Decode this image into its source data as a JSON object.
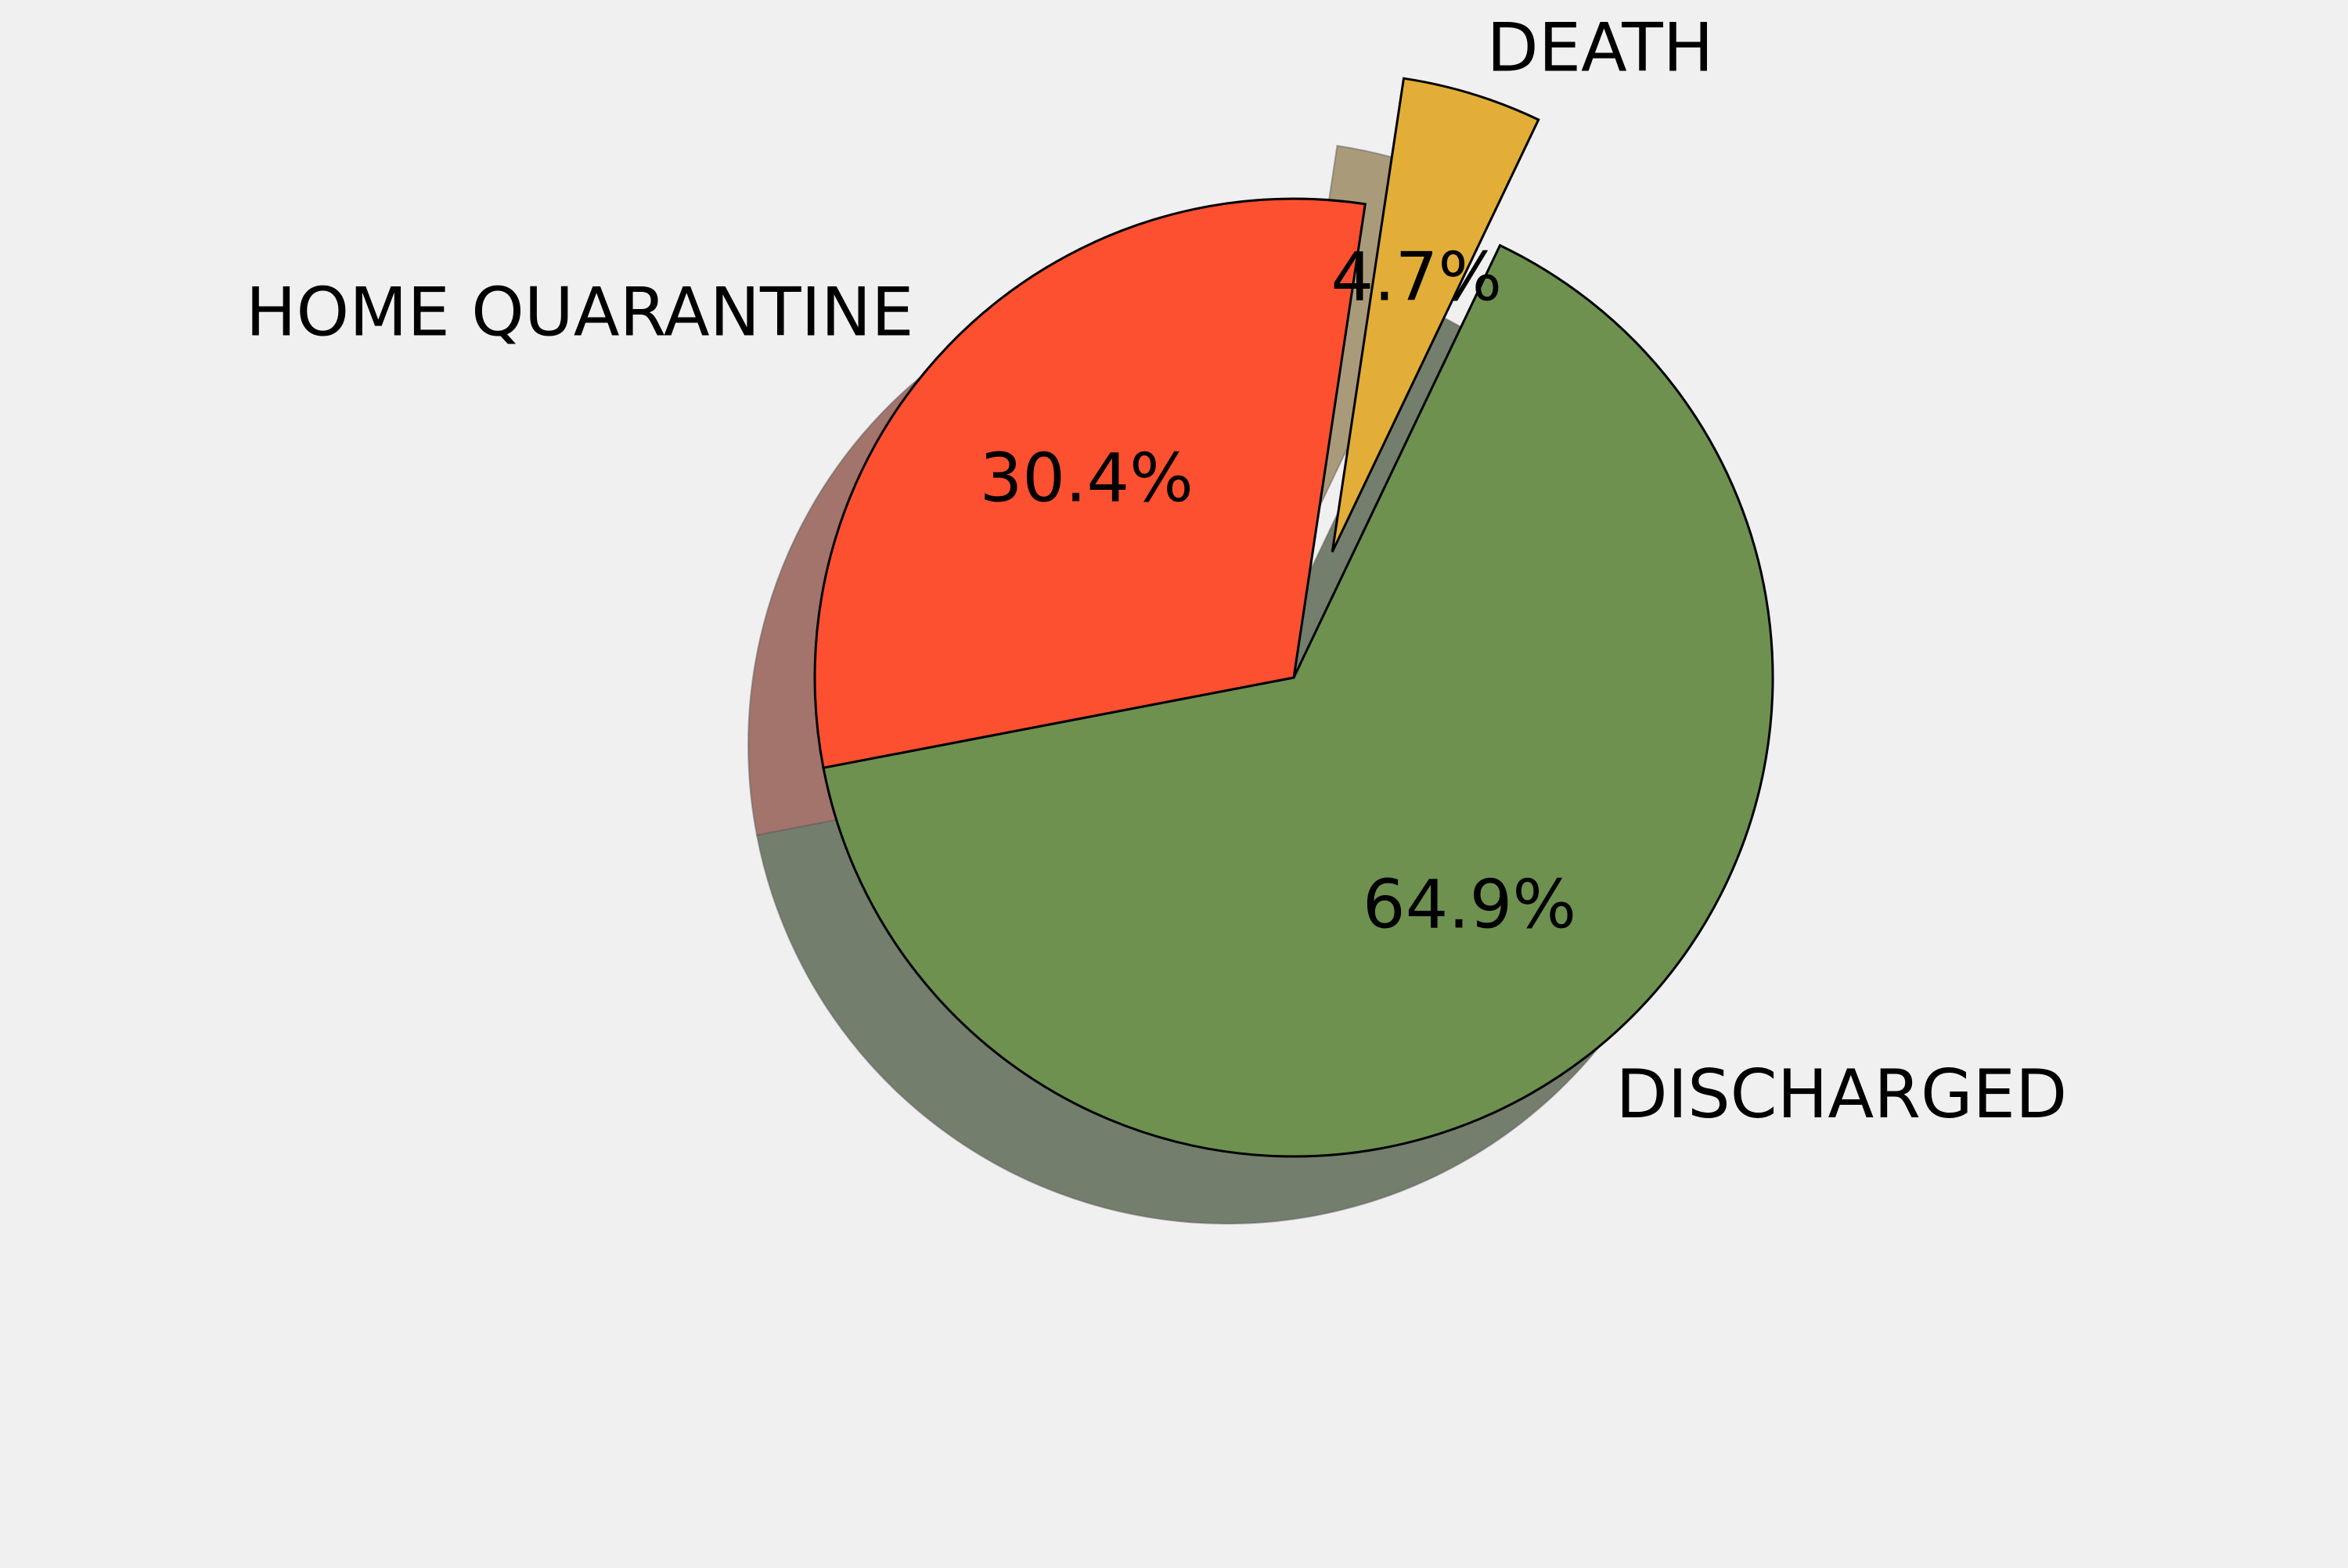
{
  "chart_data": {
    "type": "pie",
    "title": "",
    "categories": [
      "DISCHARGED",
      "HOME QUARANTINE",
      "DEATH"
    ],
    "values": [
      64.9,
      30.4,
      4.7
    ],
    "value_labels": [
      "64.9%",
      "30.4%",
      "4.7%"
    ],
    "colors": [
      "#6e914f",
      "#fd5030",
      "#e2ae38"
    ],
    "exploded": [
      false,
      false,
      true
    ],
    "shadow": true,
    "legend": false,
    "grid": false,
    "start_angle_deg": -64.5,
    "direction": "clockwise"
  }
}
